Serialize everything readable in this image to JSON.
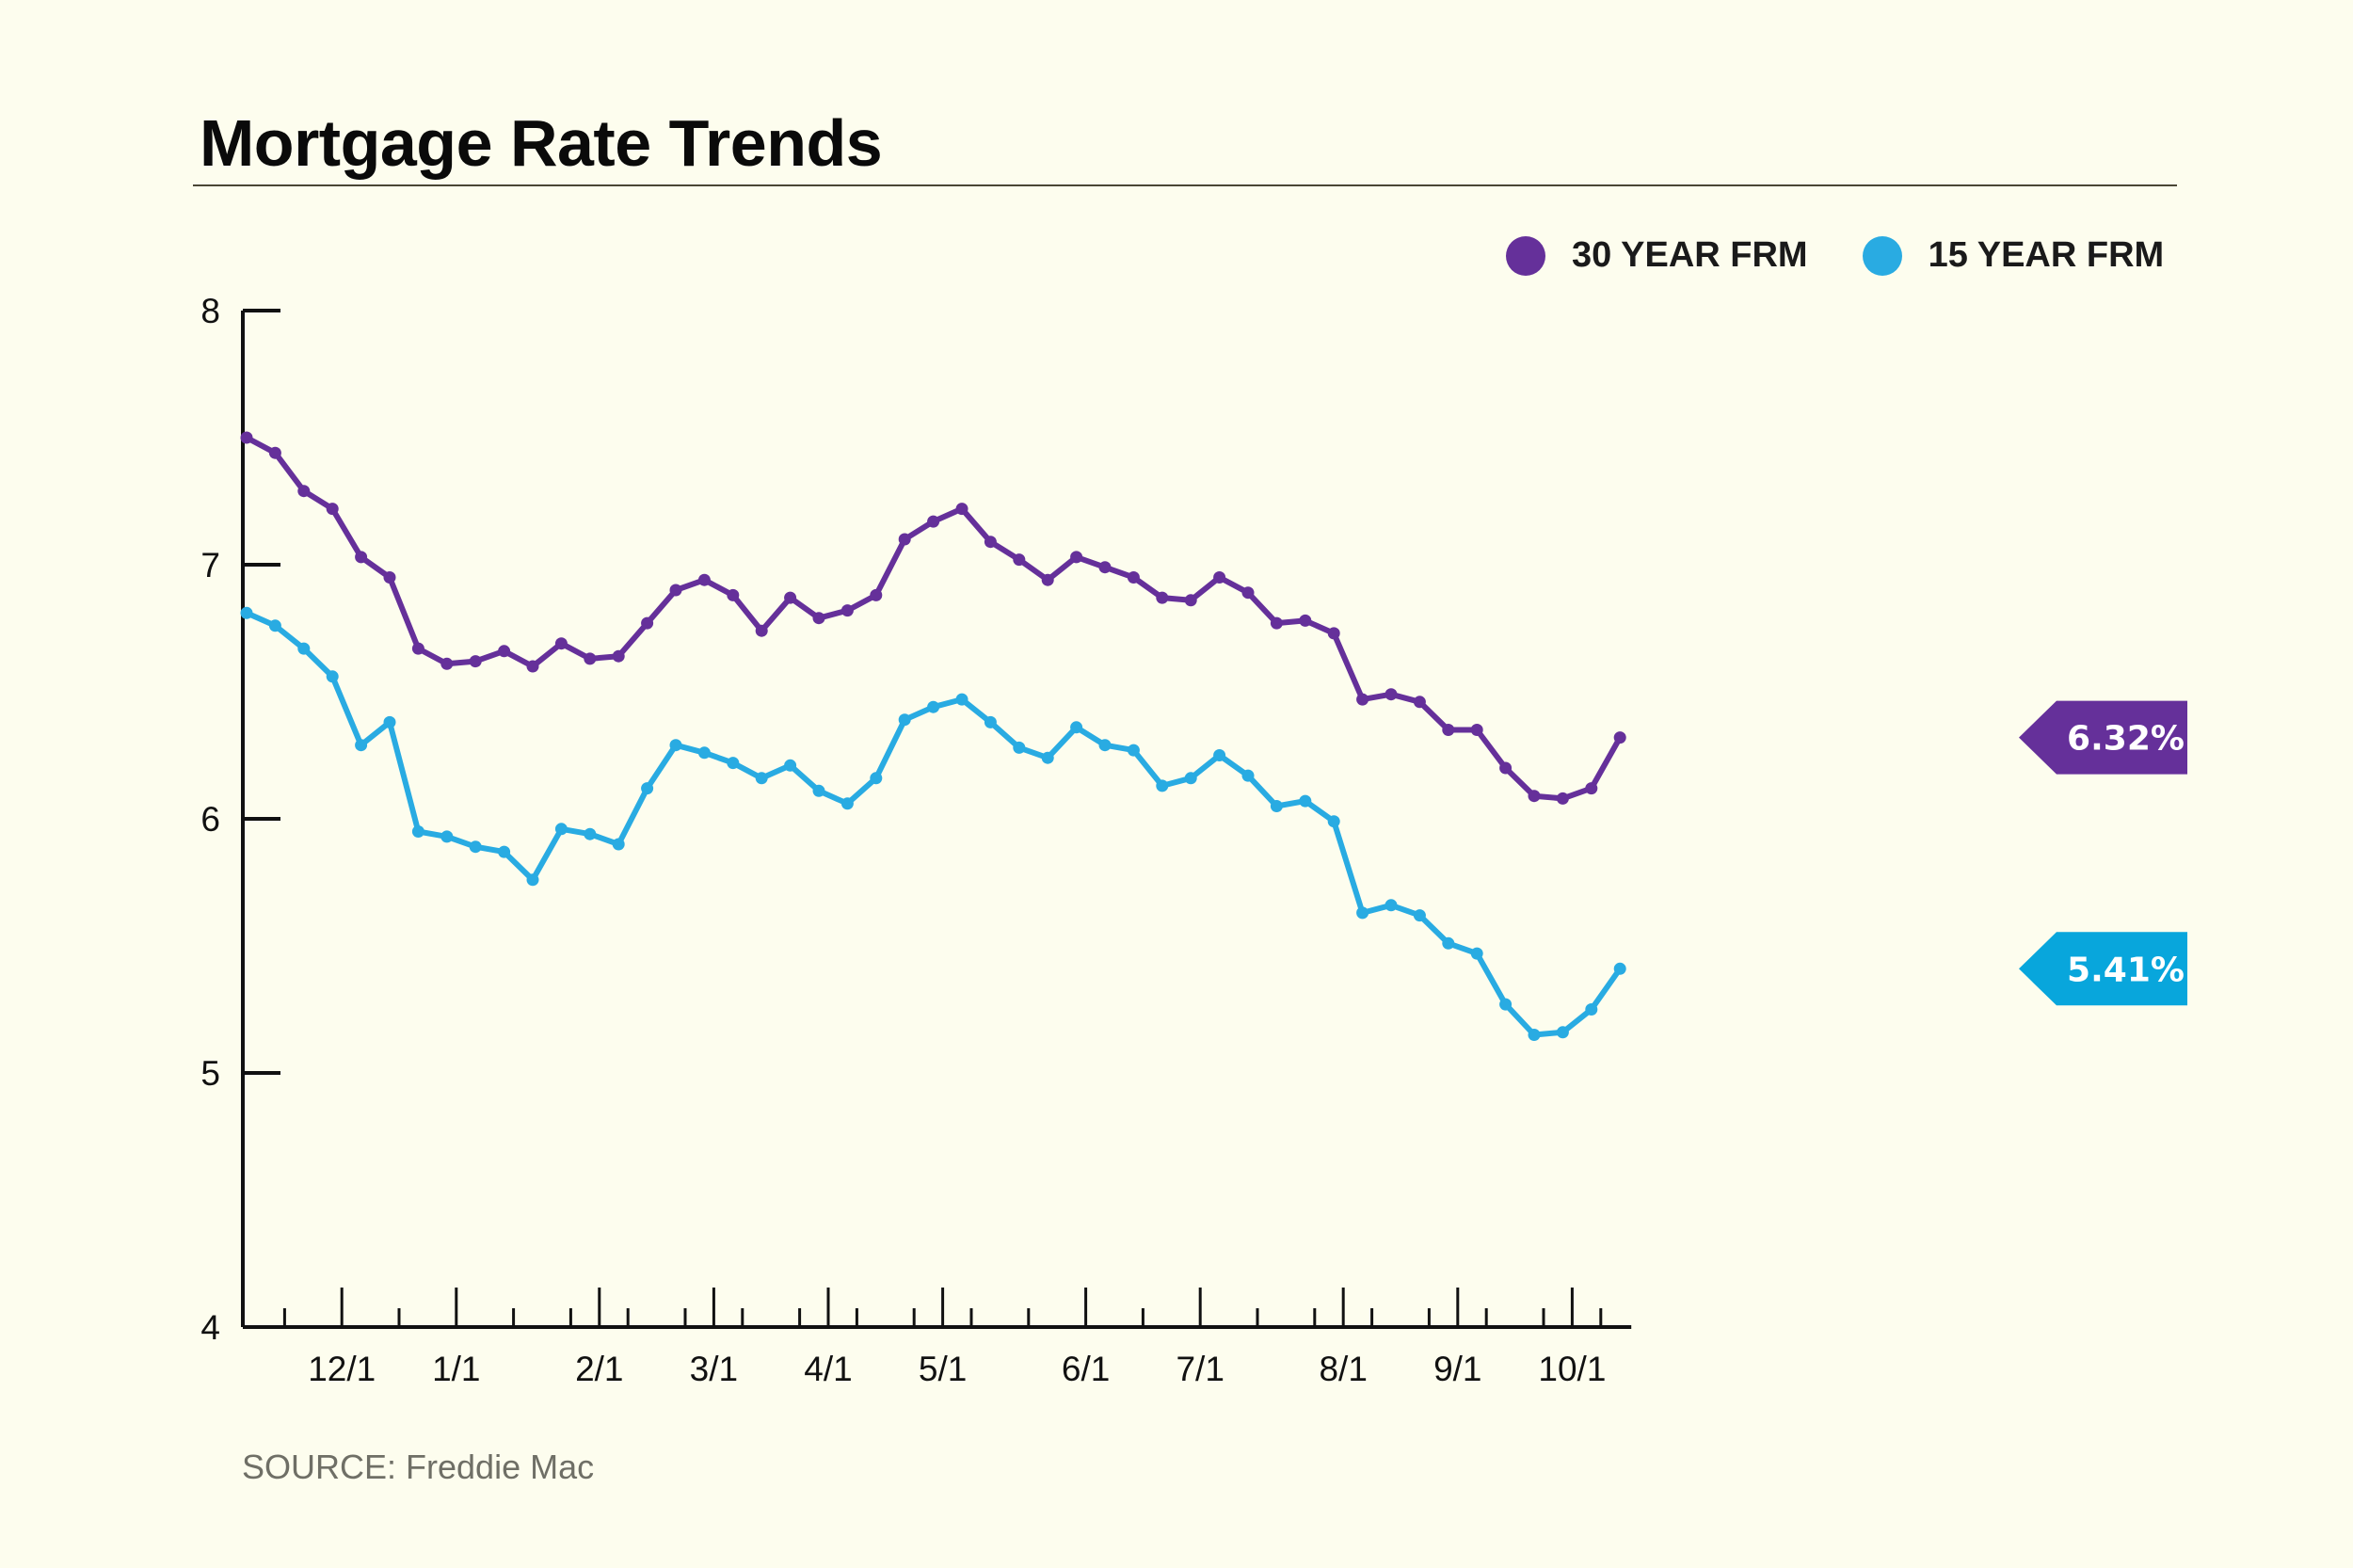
{
  "header": {
    "title": "Mortgage Rate Trends"
  },
  "footer": {
    "source": "SOURCE: Freddie Mac"
  },
  "colors": {
    "series_30": "#65309a",
    "series_15": "#29abe2",
    "callout_15": "#08a6dc",
    "background": "#fdfdee"
  },
  "chart_data": {
    "type": "line",
    "title": "Mortgage Rate Trends",
    "xlabel": "",
    "ylabel": "",
    "ylim": [
      4,
      8
    ],
    "yticks": [
      4,
      5,
      6,
      7,
      8
    ],
    "xtick_labels": [
      "12/1",
      "1/1",
      "2/1",
      "3/1",
      "4/1",
      "5/1",
      "6/1",
      "7/1",
      "8/1",
      "9/1",
      "10/1"
    ],
    "xtick_label_index": [
      3,
      7,
      12,
      16,
      20,
      24,
      29,
      33,
      38,
      42,
      46
    ],
    "n_weeks": 49,
    "grid": false,
    "legend": "top-right",
    "series": [
      {
        "name": "30 YEAR FRM",
        "color": "#65309a",
        "end_label": "6.32%",
        "values": [
          7.5,
          7.44,
          7.29,
          7.22,
          7.03,
          6.95,
          6.67,
          6.61,
          6.62,
          6.66,
          6.6,
          6.69,
          6.63,
          6.64,
          6.77,
          6.9,
          6.94,
          6.88,
          6.74,
          6.87,
          6.79,
          6.82,
          6.88,
          7.1,
          7.17,
          7.22,
          7.09,
          7.02,
          6.94,
          7.03,
          6.99,
          6.95,
          6.87,
          6.86,
          6.95,
          6.89,
          6.77,
          6.78,
          6.73,
          6.47,
          6.49,
          6.46,
          6.35,
          6.35,
          6.2,
          6.09,
          6.08,
          6.12,
          6.32
        ]
      },
      {
        "name": "15 YEAR FRM",
        "color": "#29abe2",
        "end_label": "5.41%",
        "values": [
          6.81,
          6.76,
          6.67,
          6.56,
          6.29,
          6.38,
          5.95,
          5.93,
          5.89,
          5.87,
          5.76,
          5.96,
          5.94,
          5.9,
          6.12,
          6.29,
          6.26,
          6.22,
          6.16,
          6.21,
          6.11,
          6.06,
          6.16,
          6.39,
          6.44,
          6.47,
          6.38,
          6.28,
          6.24,
          6.36,
          6.29,
          6.27,
          6.13,
          6.16,
          6.25,
          6.17,
          6.05,
          6.07,
          5.99,
          5.63,
          5.66,
          5.62,
          5.51,
          5.47,
          5.27,
          5.15,
          5.16,
          5.25,
          5.41
        ]
      }
    ]
  }
}
